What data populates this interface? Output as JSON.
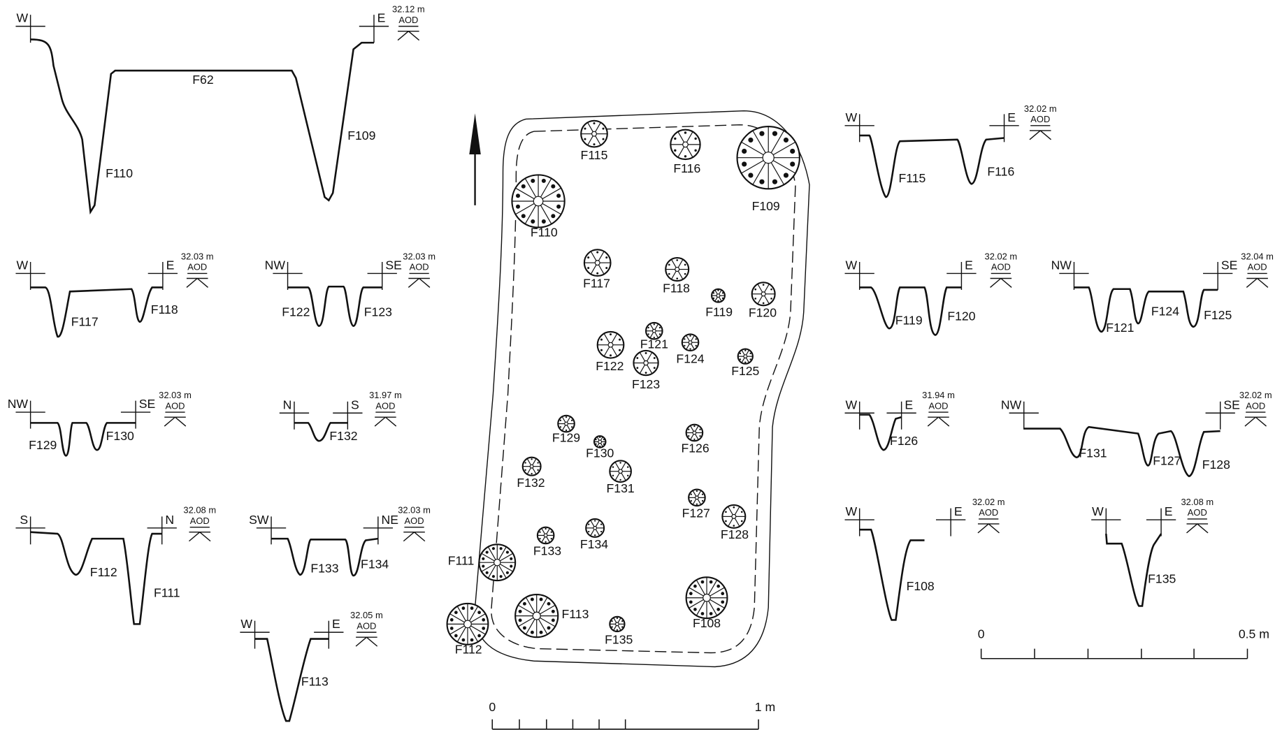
{
  "sections": [
    {
      "left": "W",
      "right": "E",
      "level": "32.12 m",
      "datum": "AOD",
      "labels": [
        "F62",
        "F109",
        "F110"
      ]
    },
    {
      "left": "W",
      "right": "E",
      "level": "32.03 m",
      "datum": "AOD",
      "labels": [
        "F117",
        "F118"
      ]
    },
    {
      "left": "NW",
      "right": "SE",
      "level": "32.03 m",
      "datum": "AOD",
      "labels": [
        "F122",
        "F123"
      ]
    },
    {
      "left": "NW",
      "right": "SE",
      "level": "32.03 m",
      "datum": "AOD",
      "labels": [
        "F129",
        "F130"
      ]
    },
    {
      "left": "N",
      "right": "S",
      "level": "31.97 m",
      "datum": "AOD",
      "labels": [
        "F132"
      ]
    },
    {
      "left": "S",
      "right": "N",
      "level": "32.08 m",
      "datum": "AOD",
      "labels": [
        "F112",
        "F111"
      ]
    },
    {
      "left": "SW",
      "right": "NE",
      "level": "32.03 m",
      "datum": "AOD",
      "labels": [
        "F133",
        "F134"
      ]
    },
    {
      "left": "W",
      "right": "E",
      "level": "32.05 m",
      "datum": "AOD",
      "labels": [
        "F113"
      ]
    },
    {
      "left": "W",
      "right": "E",
      "level": "32.02 m",
      "datum": "AOD",
      "labels": [
        "F115",
        "F116"
      ]
    },
    {
      "left": "W",
      "right": "E",
      "level": "32.02 m",
      "datum": "AOD",
      "labels": [
        "F119",
        "F120"
      ]
    },
    {
      "left": "NW",
      "right": "SE",
      "level": "32.04 m",
      "datum": "AOD",
      "labels": [
        "F121",
        "F124",
        "F125"
      ]
    },
    {
      "left": "W",
      "right": "E",
      "level": "31.94 m",
      "datum": "AOD",
      "labels": [
        "F126"
      ]
    },
    {
      "left": "NW",
      "right": "SE",
      "level": "32.02 m",
      "datum": "AOD",
      "labels": [
        "F131",
        "F127",
        "F128"
      ]
    },
    {
      "left": "W",
      "right": "E",
      "level": "32.02 m",
      "datum": "AOD",
      "labels": [
        "F108"
      ]
    },
    {
      "left": "W",
      "right": "E",
      "level": "32.08 m",
      "datum": "AOD",
      "labels": [
        "F135"
      ]
    }
  ],
  "plan": {
    "features": [
      "F115",
      "F116",
      "F109",
      "F110",
      "F117",
      "F118",
      "F119",
      "F120",
      "F121",
      "F122",
      "F123",
      "F124",
      "F125",
      "F126",
      "F129",
      "F130",
      "F131",
      "F132",
      "F127",
      "F128",
      "F133",
      "F134",
      "F111",
      "F112",
      "F113",
      "F135",
      "F108"
    ]
  },
  "scale_bars": [
    {
      "start": "0",
      "end": "1 m"
    },
    {
      "start": "0",
      "end": "0.5 m"
    }
  ]
}
